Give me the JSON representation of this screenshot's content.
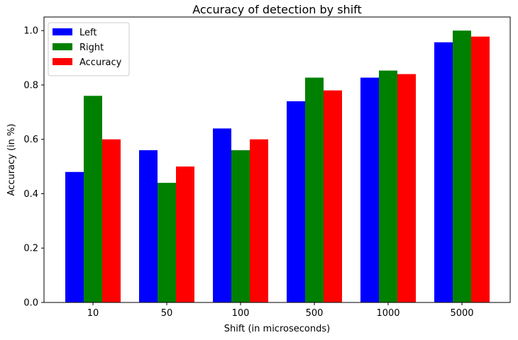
{
  "chart_data": {
    "type": "bar",
    "title": "Accuracy of detection by shift",
    "xlabel": "Shift (in microseconds)",
    "ylabel": "Accuracy (in %)",
    "categories": [
      "10",
      "50",
      "100",
      "500",
      "1000",
      "5000"
    ],
    "series": [
      {
        "name": "Left",
        "color": "#0000ff",
        "values": [
          0.48,
          0.56,
          0.64,
          0.74,
          0.827,
          0.957
        ]
      },
      {
        "name": "Right",
        "color": "#008000",
        "values": [
          0.76,
          0.44,
          0.56,
          0.827,
          0.853,
          1.0
        ]
      },
      {
        "name": "Accuracy",
        "color": "#ff0000",
        "values": [
          0.6,
          0.5,
          0.6,
          0.78,
          0.84,
          0.978
        ]
      }
    ],
    "ylim": [
      0,
      1.05
    ],
    "yticks": [
      "0.0",
      "0.2",
      "0.4",
      "0.6",
      "0.8",
      "1.0"
    ],
    "yticks_values": [
      0,
      0.2,
      0.4,
      0.6,
      0.8,
      1.0
    ],
    "grid": false,
    "legend_position": "top-left"
  }
}
